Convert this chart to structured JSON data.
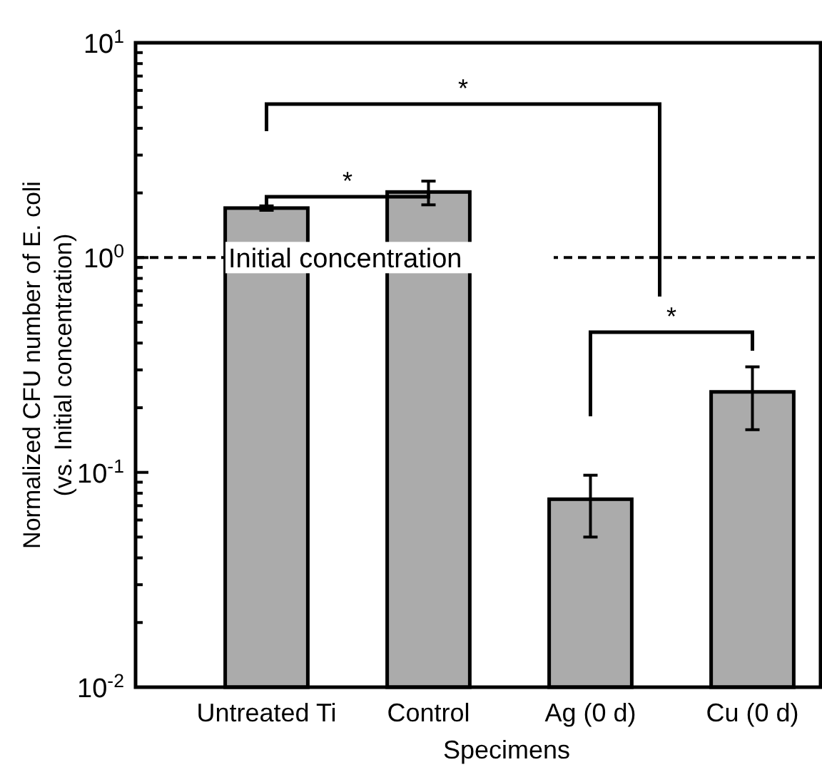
{
  "chart_data": {
    "type": "bar",
    "xlabel": "Specimens",
    "ylabel": "Normalized CFU number of E. coli (vs. Initial concentration)",
    "categories": [
      "Untreated Ti",
      "Control",
      "Ag (0 d)",
      "Cu (0 d)"
    ],
    "values": [
      1.7,
      2.02,
      0.075,
      0.237
    ],
    "errors": [
      0.04,
      [
        1.76,
        2.27
      ],
      [
        0.05,
        0.097
      ],
      [
        0.158,
        0.31
      ]
    ],
    "color": "#ababab",
    "log": true,
    "ylim": [
      0.01,
      10
    ],
    "yticks": [
      {
        "value": 0.01,
        "label": "10$^{-2}$"
      },
      {
        "value": 0.02,
        "label": null
      },
      {
        "value": 0.03,
        "label": null
      },
      {
        "value": 0.04,
        "label": null
      },
      {
        "value": 0.05,
        "label": null
      },
      {
        "value": 0.06,
        "label": null
      },
      {
        "value": 0.07,
        "label": null
      },
      {
        "value": 0.08,
        "label": null
      },
      {
        "value": 0.09,
        "label": null
      },
      {
        "value": 0.1,
        "label": "10$^{-1}$"
      },
      {
        "value": 0.2,
        "label": null
      },
      {
        "value": 0.3,
        "label": null
      },
      {
        "value": 0.4,
        "label": null
      },
      {
        "value": 0.5,
        "label": null
      },
      {
        "value": 0.6,
        "label": null
      },
      {
        "value": 0.7,
        "label": null
      },
      {
        "value": 0.8,
        "label": null
      },
      {
        "value": 0.9,
        "label": null
      },
      {
        "value": 1,
        "label": "10$^{0}$"
      },
      {
        "value": 2,
        "label": null
      },
      {
        "value": 3,
        "label": null
      },
      {
        "value": 4,
        "label": null
      },
      {
        "value": 5,
        "label": null
      },
      {
        "value": 6,
        "label": null
      },
      {
        "value": 7,
        "label": null
      },
      {
        "value": 8,
        "label": null
      },
      {
        "value": 9,
        "label": null
      },
      {
        "value": 10,
        "label": "10$^{1}$"
      }
    ],
    "ref_lines": [
      {
        "axis": "y",
        "value": 1,
        "label": "Initial concentration",
        "line_style": "dashed",
        "color": "#000000"
      }
    ],
    "annotations": [
      "*",
      "*",
      "*"
    ],
    "grid": false
  }
}
